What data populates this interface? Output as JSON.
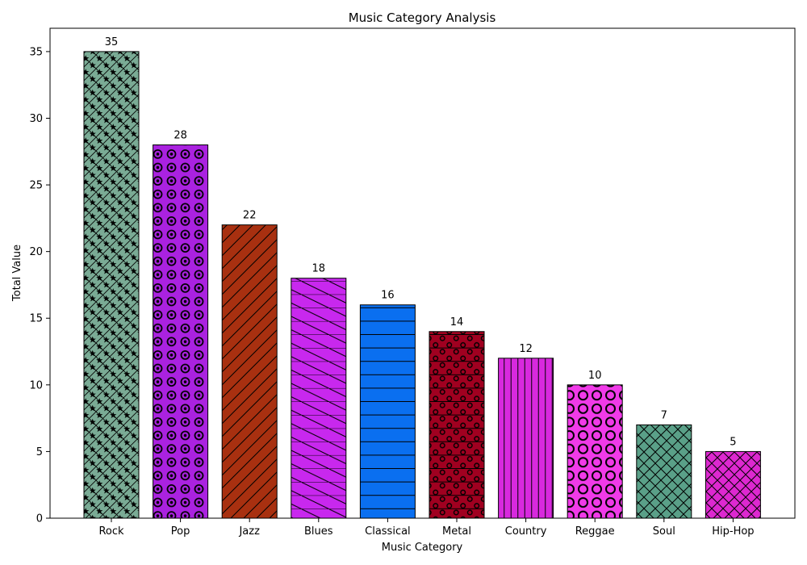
{
  "chart_data": {
    "type": "bar",
    "title": "Music Category Analysis",
    "xlabel": "Music Category",
    "ylabel": "Total Value",
    "ylim": [
      0,
      36.75
    ],
    "yticks": [
      0,
      5,
      10,
      15,
      20,
      25,
      30,
      35
    ],
    "grid": false,
    "categories": [
      "Rock",
      "Pop",
      "Jazz",
      "Blues",
      "Classical",
      "Metal",
      "Country",
      "Reggae",
      "Soul",
      "Hip-Hop"
    ],
    "values": [
      35,
      28,
      22,
      18,
      16,
      14,
      12,
      10,
      7,
      5
    ],
    "colors": [
      "#7aab95",
      "#aa22e0",
      "#a83010",
      "#c828ee",
      "#0a6ff0",
      "#a00020",
      "#d829de",
      "#f03ae8",
      "#5aa088",
      "#dd28d0"
    ],
    "hatches": [
      "star",
      "ring",
      "slash",
      "backslash",
      "horizontal",
      "small-circle",
      "vertical",
      "big-circle",
      "cross",
      "cross"
    ]
  }
}
